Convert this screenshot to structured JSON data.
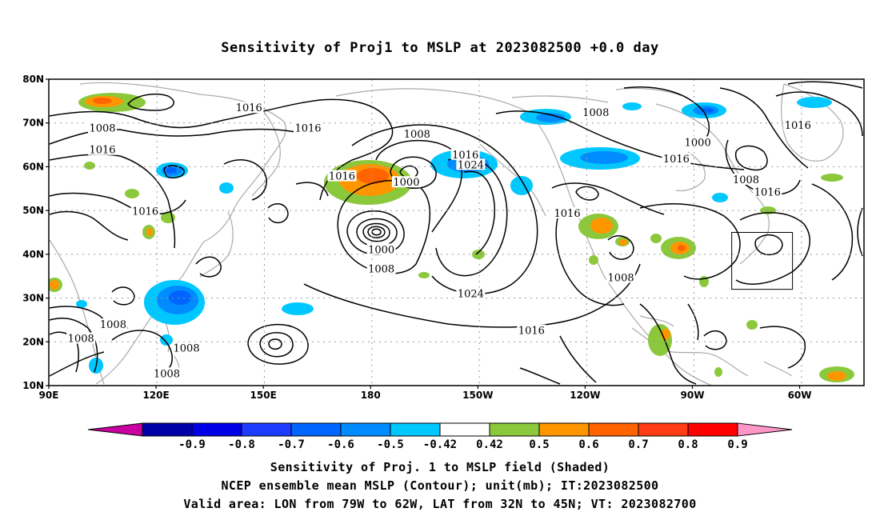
{
  "title": "Sensitivity of Proj1 to MSLP at 2023082500 +0.0 day",
  "map": {
    "lat_labels": [
      "80N",
      "70N",
      "60N",
      "50N",
      "40N",
      "30N",
      "20N",
      "10N"
    ],
    "lon_labels": [
      "90E",
      "120E",
      "150E",
      "180",
      "150W",
      "120W",
      "90W",
      "60W"
    ],
    "contour_labels": [
      {
        "text": "1016",
        "lon": 146,
        "lat": 73.2
      },
      {
        "text": "1008",
        "lon": 105,
        "lat": 68.6
      },
      {
        "text": "1016",
        "lon": 162.5,
        "lat": 68.6
      },
      {
        "text": "1016",
        "lon": 105,
        "lat": 63.6
      },
      {
        "text": "1008",
        "lon": 193,
        "lat": 67.2
      },
      {
        "text": "1008",
        "lon": 243,
        "lat": 72.1
      },
      {
        "text": "1016",
        "lon": 206.5,
        "lat": 62.5
      },
      {
        "text": "1024",
        "lon": 208,
        "lat": 60.2
      },
      {
        "text": "1016",
        "lon": 172,
        "lat": 57.6
      },
      {
        "text": "1000",
        "lon": 190,
        "lat": 56.2
      },
      {
        "text": "1016",
        "lon": 117,
        "lat": 49.6
      },
      {
        "text": "1016",
        "lon": 235,
        "lat": 49.1
      },
      {
        "text": "1000",
        "lon": 271.5,
        "lat": 65.3
      },
      {
        "text": "1016",
        "lon": 265.5,
        "lat": 61.5
      },
      {
        "text": "1008",
        "lon": 285,
        "lat": 56.8
      },
      {
        "text": "1016",
        "lon": 291,
        "lat": 54
      },
      {
        "text": "1016",
        "lon": 299.5,
        "lat": 69.2
      },
      {
        "text": "1000",
        "lon": 183,
        "lat": 40.8
      },
      {
        "text": "1008",
        "lon": 183,
        "lat": 36.4
      },
      {
        "text": "1008",
        "lon": 250,
        "lat": 34.4
      },
      {
        "text": "1024",
        "lon": 208,
        "lat": 30.7
      },
      {
        "text": "1016",
        "lon": 225,
        "lat": 22.3
      },
      {
        "text": "1008",
        "lon": 108,
        "lat": 23.7
      },
      {
        "text": "1008",
        "lon": 99,
        "lat": 20.5
      },
      {
        "text": "1008",
        "lon": 128.5,
        "lat": 18.3
      },
      {
        "text": "1008",
        "lon": 123,
        "lat": 12.5
      }
    ],
    "valid_box": {
      "lon_min": 281,
      "lon_max": 298,
      "lat_min": 32,
      "lat_max": 45
    },
    "colors": {
      "contour": "#000000",
      "coast": "#aaaaaa",
      "grid": "#999999"
    }
  },
  "colorbar": {
    "labels": [
      "-0.9",
      "-0.8",
      "-0.7",
      "-0.6",
      "-0.5",
      "-0.42",
      "0.42",
      "0.5",
      "0.6",
      "0.7",
      "0.8",
      "0.9"
    ],
    "colors": [
      "#c8009f",
      "#0000a8",
      "#0000e8",
      "#1e3cff",
      "#0064ff",
      "#008cff",
      "#00c8ff",
      "#ffffff",
      "#8cc83c",
      "#ff9600",
      "#ff6400",
      "#ff3c14",
      "#ff0000",
      "#ff96c8"
    ]
  },
  "captions": {
    "line1": "Sensitivity of Proj. 1 to MSLP field (Shaded)",
    "line2": "NCEP ensemble mean MSLP (Contour); unit(mb); IT:2023082500",
    "line3": "Valid area: LON from 79W to 62W, LAT from 32N to 45N; VT: 2023082700"
  }
}
